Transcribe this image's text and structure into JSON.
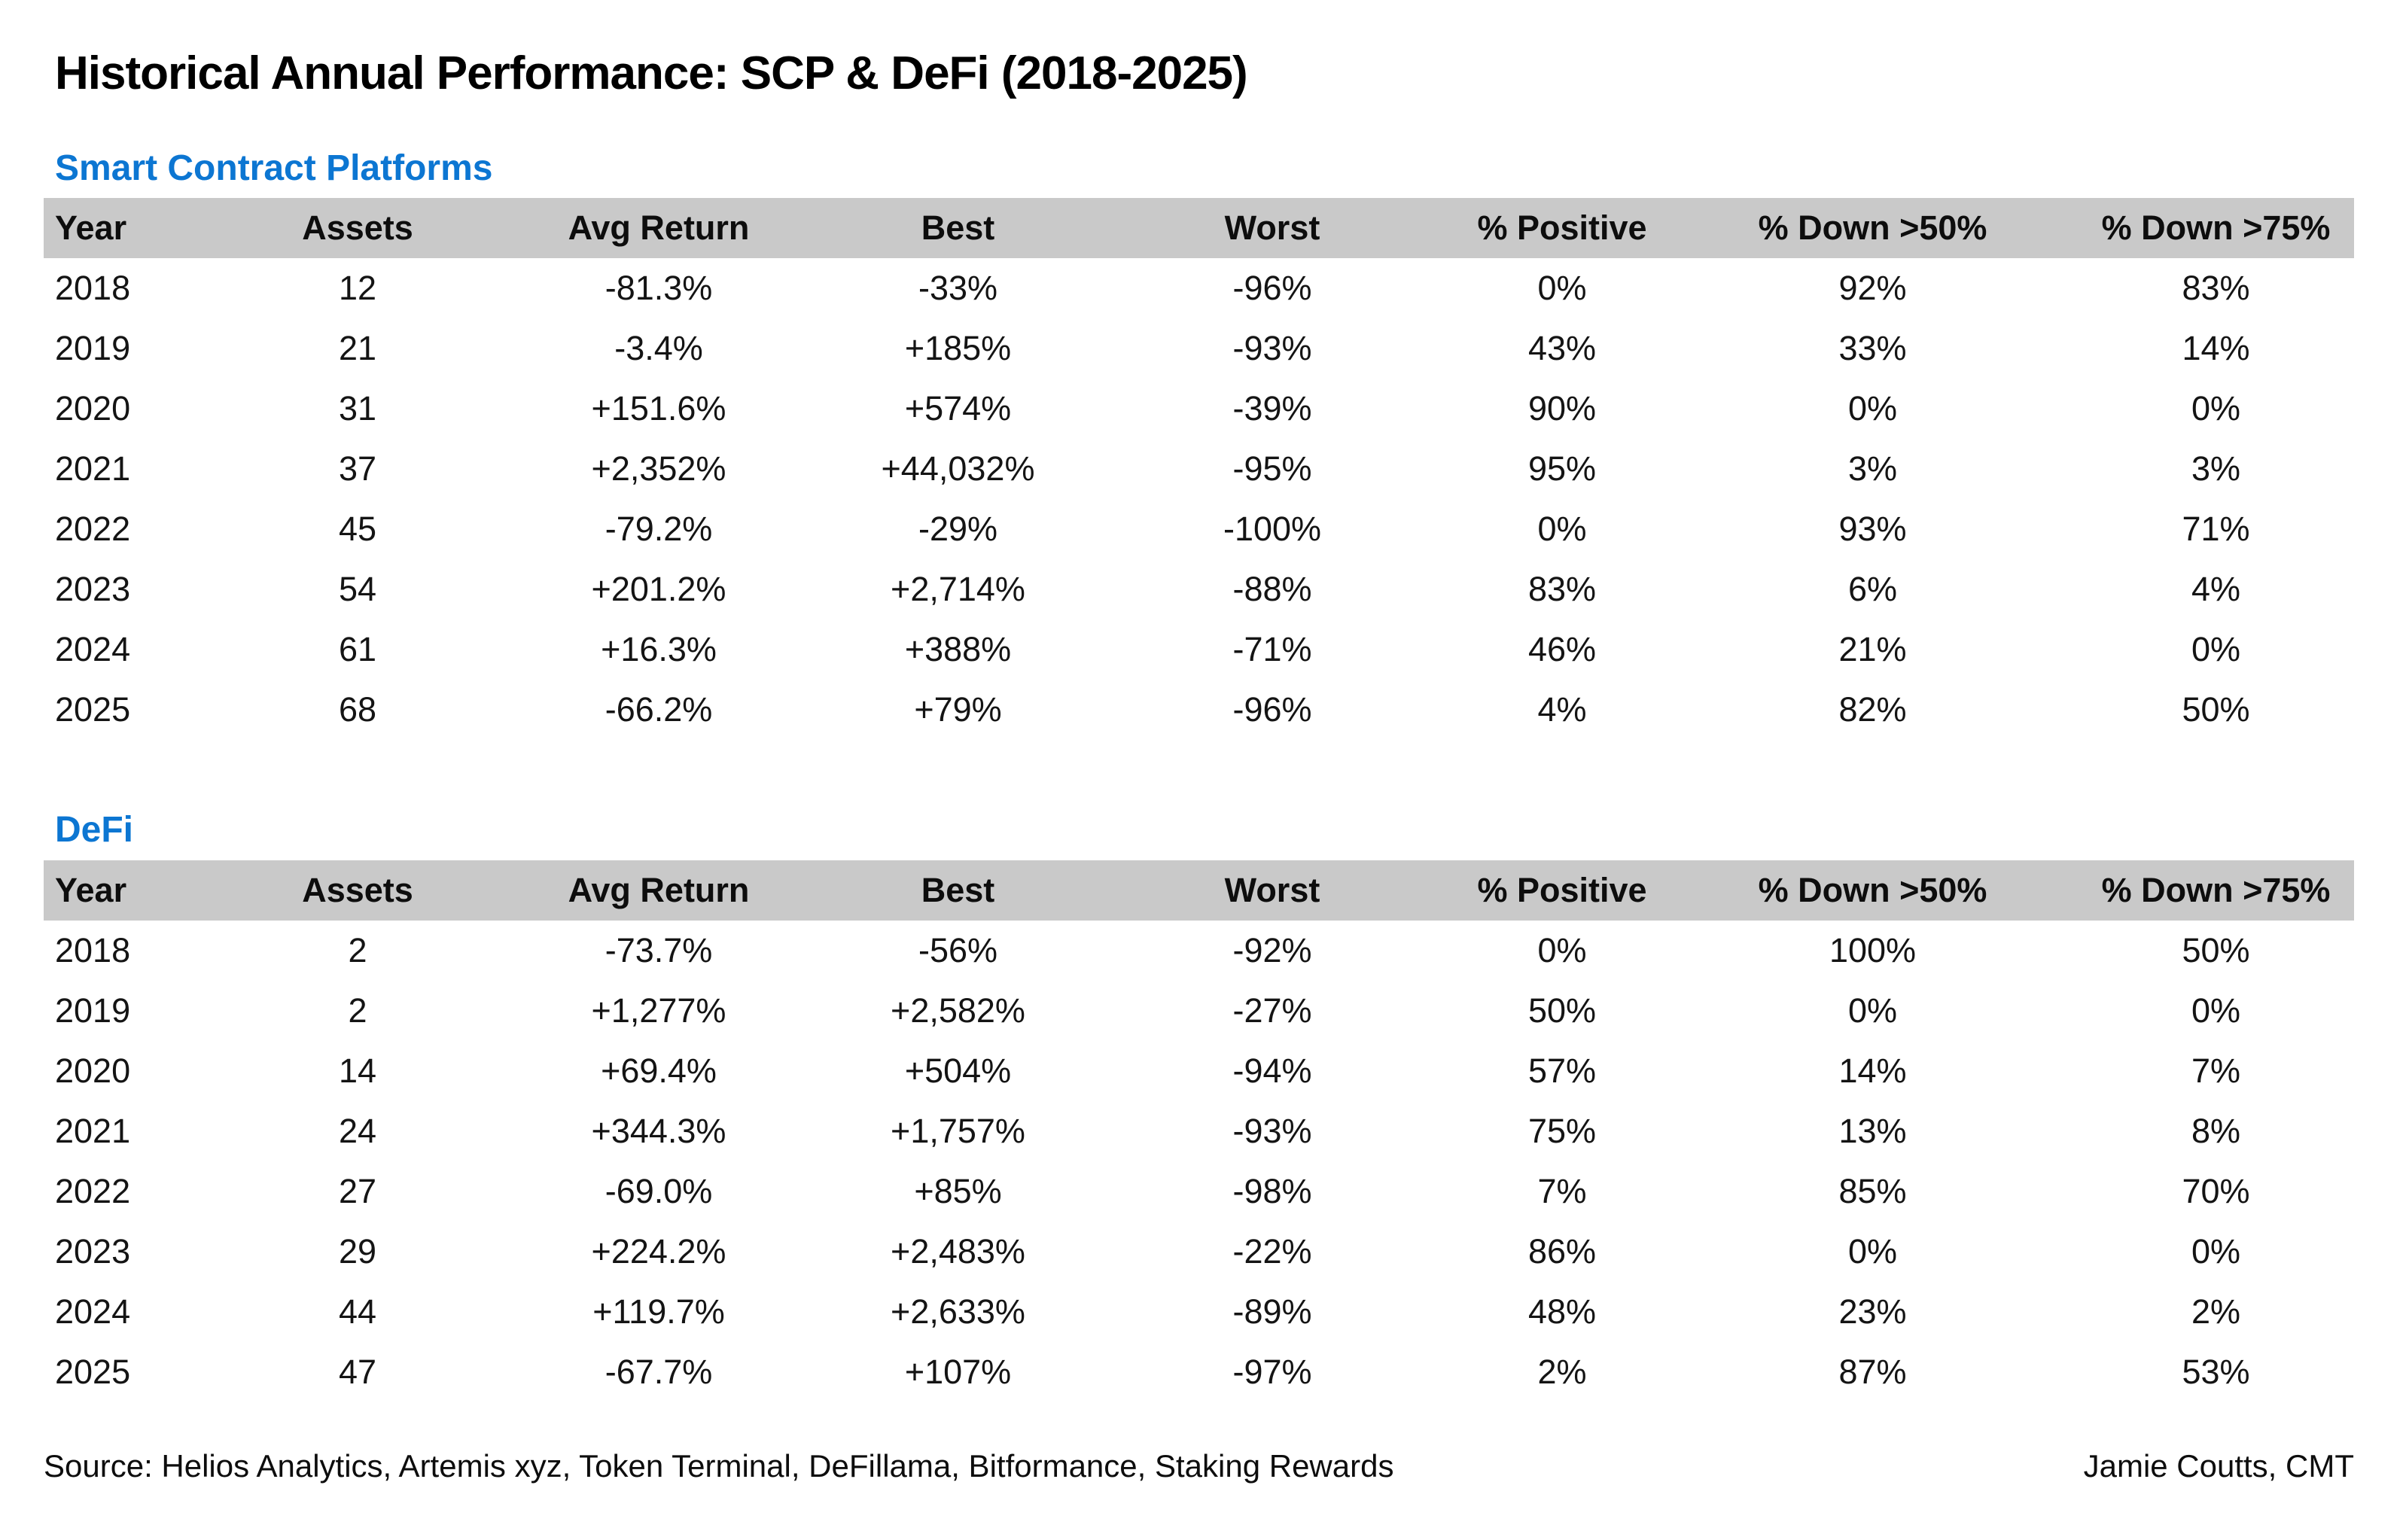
{
  "page": {
    "title": "Historical Annual Performance: SCP & DeFi (2018-2025)",
    "footer": {
      "source": "Source: Helios Analytics, Artemis xyz, Token Terminal, DeFillama, Bitformance, Staking Rewards",
      "author": "Jamie Coutts, CMT"
    }
  },
  "colors": {
    "section_blue": "#0c76d2",
    "header_band_gray": "#c9c9c9",
    "positive_green": "#1e9e32",
    "negative_red": "#f7212f",
    "body_text": "#141414"
  },
  "chart_data": [
    {
      "type": "table",
      "title": "Smart Contract Platforms",
      "columns": [
        "Year",
        "Assets",
        "Avg Return",
        "Best",
        "Worst",
        "% Positive",
        "% Down >50%",
        "% Down >75%"
      ],
      "signed_color_columns": [
        2,
        3,
        4
      ],
      "rows": [
        [
          "2018",
          "12",
          "-81.3%",
          "-33%",
          "-96%",
          "0%",
          "92%",
          "83%"
        ],
        [
          "2019",
          "21",
          "-3.4%",
          "+185%",
          "-93%",
          "43%",
          "33%",
          "14%"
        ],
        [
          "2020",
          "31",
          "+151.6%",
          "+574%",
          "-39%",
          "90%",
          "0%",
          "0%"
        ],
        [
          "2021",
          "37",
          "+2,352%",
          "+44,032%",
          "-95%",
          "95%",
          "3%",
          "3%"
        ],
        [
          "2022",
          "45",
          "-79.2%",
          "-29%",
          "-100%",
          "0%",
          "93%",
          "71%"
        ],
        [
          "2023",
          "54",
          "+201.2%",
          "+2,714%",
          "-88%",
          "83%",
          "6%",
          "4%"
        ],
        [
          "2024",
          "61",
          "+16.3%",
          "+388%",
          "-71%",
          "46%",
          "21%",
          "0%"
        ],
        [
          "2025",
          "68",
          "-66.2%",
          "+79%",
          "-96%",
          "4%",
          "82%",
          "50%"
        ]
      ]
    },
    {
      "type": "table",
      "title": "DeFi",
      "columns": [
        "Year",
        "Assets",
        "Avg Return",
        "Best",
        "Worst",
        "% Positive",
        "% Down >50%",
        "% Down >75%"
      ],
      "signed_color_columns": [
        2,
        3,
        4
      ],
      "rows": [
        [
          "2018",
          "2",
          "-73.7%",
          "-56%",
          "-92%",
          "0%",
          "100%",
          "50%"
        ],
        [
          "2019",
          "2",
          "+1,277%",
          "+2,582%",
          "-27%",
          "50%",
          "0%",
          "0%"
        ],
        [
          "2020",
          "14",
          "+69.4%",
          "+504%",
          "-94%",
          "57%",
          "14%",
          "7%"
        ],
        [
          "2021",
          "24",
          "+344.3%",
          "+1,757%",
          "-93%",
          "75%",
          "13%",
          "8%"
        ],
        [
          "2022",
          "27",
          "-69.0%",
          "+85%",
          "-98%",
          "7%",
          "85%",
          "70%"
        ],
        [
          "2023",
          "29",
          "+224.2%",
          "+2,483%",
          "-22%",
          "86%",
          "0%",
          "0%"
        ],
        [
          "2024",
          "44",
          "+119.7%",
          "+2,633%",
          "-89%",
          "48%",
          "23%",
          "2%"
        ],
        [
          "2025",
          "47",
          "-67.7%",
          "+107%",
          "-97%",
          "2%",
          "87%",
          "53%"
        ]
      ]
    }
  ]
}
